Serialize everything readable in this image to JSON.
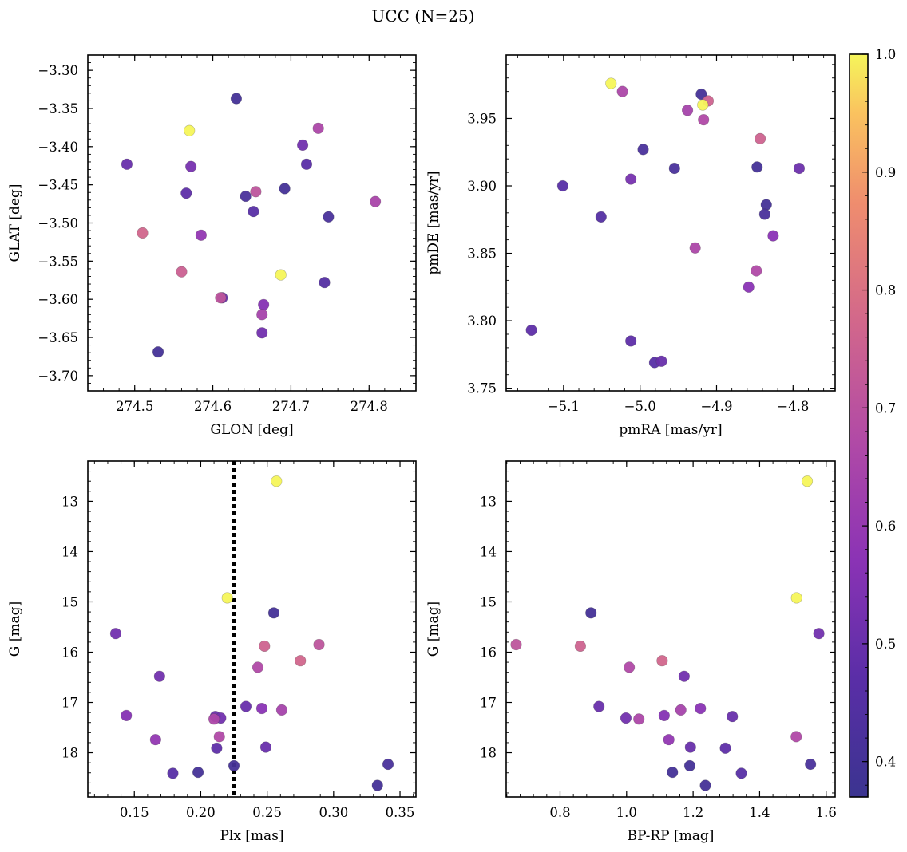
{
  "title": "UCC (N=25)",
  "colorbar": {
    "min": 0.37,
    "max": 1.0,
    "ticks": [
      0.4,
      0.5,
      0.6,
      0.7,
      0.8,
      0.9,
      1.0
    ],
    "tick_labels": [
      "0.4",
      "0.5",
      "0.6",
      "0.7",
      "0.8",
      "0.9",
      "1.0"
    ],
    "colormap": "plasma"
  },
  "chart_data": [
    {
      "type": "scatter",
      "xlabel": "GLON [deg]",
      "ylabel": "GLAT [deg]",
      "xlim": [
        274.44,
        274.86
      ],
      "ylim": [
        -3.72,
        -3.28
      ],
      "y_inverted": false,
      "xticks": [
        274.5,
        274.6,
        274.7,
        274.8
      ],
      "xtick_labels": [
        "274.5",
        "274.6",
        "274.7",
        "274.8"
      ],
      "yticks": [
        -3.7,
        -3.65,
        -3.6,
        -3.55,
        -3.5,
        -3.45,
        -3.4,
        -3.35,
        -3.3
      ],
      "ytick_labels": [
        "−3.70",
        "−3.65",
        "−3.60",
        "−3.55",
        "−3.50",
        "−3.45",
        "−3.40",
        "−3.35",
        "−3.30"
      ],
      "points": [
        {
          "x": 274.63,
          "y": -3.337,
          "c": 0.4
        },
        {
          "x": 274.57,
          "y": -3.379,
          "c": 1.0
        },
        {
          "x": 274.735,
          "y": -3.376,
          "c": 0.66
        },
        {
          "x": 274.715,
          "y": -3.398,
          "c": 0.52
        },
        {
          "x": 274.49,
          "y": -3.423,
          "c": 0.5
        },
        {
          "x": 274.72,
          "y": -3.423,
          "c": 0.47
        },
        {
          "x": 274.572,
          "y": -3.426,
          "c": 0.53
        },
        {
          "x": 274.692,
          "y": -3.455,
          "c": 0.4
        },
        {
          "x": 274.655,
          "y": -3.459,
          "c": 0.71
        },
        {
          "x": 274.566,
          "y": -3.461,
          "c": 0.48
        },
        {
          "x": 274.642,
          "y": -3.465,
          "c": 0.42
        },
        {
          "x": 274.808,
          "y": -3.472,
          "c": 0.65
        },
        {
          "x": 274.652,
          "y": -3.485,
          "c": 0.46
        },
        {
          "x": 274.748,
          "y": -3.492,
          "c": 0.42
        },
        {
          "x": 274.51,
          "y": -3.513,
          "c": 0.77
        },
        {
          "x": 274.585,
          "y": -3.516,
          "c": 0.59
        },
        {
          "x": 274.56,
          "y": -3.564,
          "c": 0.75
        },
        {
          "x": 274.687,
          "y": -3.568,
          "c": 1.0
        },
        {
          "x": 274.743,
          "y": -3.578,
          "c": 0.45
        },
        {
          "x": 274.61,
          "y": -3.598,
          "c": 0.71
        },
        {
          "x": 274.612,
          "y": -3.598,
          "c": 0.5
        },
        {
          "x": 274.665,
          "y": -3.607,
          "c": 0.56
        },
        {
          "x": 274.663,
          "y": -3.62,
          "c": 0.64
        },
        {
          "x": 274.663,
          "y": -3.644,
          "c": 0.52
        },
        {
          "x": 274.53,
          "y": -3.669,
          "c": 0.4
        }
      ]
    },
    {
      "type": "scatter",
      "xlabel": "pmRA [mas/yr]",
      "ylabel": "pmDE [mas/yr]",
      "xlim": [
        -5.175,
        -4.745
      ],
      "ylim": [
        3.748,
        3.997
      ],
      "y_inverted": false,
      "xticks": [
        -5.1,
        -5.0,
        -4.9,
        -4.8
      ],
      "xtick_labels": [
        "−5.1",
        "−5.0",
        "−4.9",
        "−4.8"
      ],
      "yticks": [
        3.75,
        3.8,
        3.85,
        3.9,
        3.95
      ],
      "ytick_labels": [
        "3.75",
        "3.80",
        "3.85",
        "3.90",
        "3.95"
      ],
      "points": [
        {
          "x": -5.038,
          "y": 3.976,
          "c": 1.0
        },
        {
          "x": -5.023,
          "y": 3.97,
          "c": 0.66
        },
        {
          "x": -4.92,
          "y": 3.968,
          "c": 0.4
        },
        {
          "x": -4.911,
          "y": 3.963,
          "c": 0.76
        },
        {
          "x": -4.918,
          "y": 3.96,
          "c": 1.0
        },
        {
          "x": -4.938,
          "y": 3.956,
          "c": 0.64
        },
        {
          "x": -4.917,
          "y": 3.949,
          "c": 0.67
        },
        {
          "x": -4.843,
          "y": 3.935,
          "c": 0.76
        },
        {
          "x": -4.996,
          "y": 3.927,
          "c": 0.42
        },
        {
          "x": -4.955,
          "y": 3.913,
          "c": 0.42
        },
        {
          "x": -4.847,
          "y": 3.914,
          "c": 0.4
        },
        {
          "x": -4.792,
          "y": 3.913,
          "c": 0.51
        },
        {
          "x": -5.012,
          "y": 3.905,
          "c": 0.53
        },
        {
          "x": -5.101,
          "y": 3.9,
          "c": 0.46
        },
        {
          "x": -4.835,
          "y": 3.886,
          "c": 0.4
        },
        {
          "x": -4.837,
          "y": 3.879,
          "c": 0.42
        },
        {
          "x": -5.051,
          "y": 3.877,
          "c": 0.45
        },
        {
          "x": -4.826,
          "y": 3.863,
          "c": 0.57
        },
        {
          "x": -4.928,
          "y": 3.854,
          "c": 0.66
        },
        {
          "x": -4.848,
          "y": 3.837,
          "c": 0.67
        },
        {
          "x": -4.858,
          "y": 3.825,
          "c": 0.57
        },
        {
          "x": -5.142,
          "y": 3.793,
          "c": 0.48
        },
        {
          "x": -5.012,
          "y": 3.785,
          "c": 0.48
        },
        {
          "x": -4.981,
          "y": 3.769,
          "c": 0.46
        },
        {
          "x": -4.972,
          "y": 3.77,
          "c": 0.5
        }
      ]
    },
    {
      "type": "scatter",
      "xlabel": "Plx [mas]",
      "ylabel": "G [mag]",
      "xlim": [
        0.115,
        0.362
      ],
      "ylim": [
        18.88,
        12.2
      ],
      "y_inverted": true,
      "vline": {
        "x": 0.225,
        "style": "dotted"
      },
      "xticks": [
        0.15,
        0.2,
        0.25,
        0.3,
        0.35
      ],
      "xtick_labels": [
        "0.15",
        "0.20",
        "0.25",
        "0.30",
        "0.35"
      ],
      "yticks": [
        13,
        14,
        15,
        16,
        17,
        18
      ],
      "ytick_labels": [
        "13",
        "14",
        "15",
        "16",
        "17",
        "18"
      ],
      "points": [
        {
          "x": 0.257,
          "y": 12.6,
          "c": 1.0
        },
        {
          "x": 0.22,
          "y": 14.92,
          "c": 1.0
        },
        {
          "x": 0.255,
          "y": 15.22,
          "c": 0.4
        },
        {
          "x": 0.136,
          "y": 15.63,
          "c": 0.52
        },
        {
          "x": 0.289,
          "y": 15.85,
          "c": 0.71
        },
        {
          "x": 0.248,
          "y": 15.88,
          "c": 0.76
        },
        {
          "x": 0.275,
          "y": 16.17,
          "c": 0.77
        },
        {
          "x": 0.243,
          "y": 16.3,
          "c": 0.67
        },
        {
          "x": 0.169,
          "y": 16.48,
          "c": 0.52
        },
        {
          "x": 0.234,
          "y": 17.08,
          "c": 0.5
        },
        {
          "x": 0.246,
          "y": 17.12,
          "c": 0.57
        },
        {
          "x": 0.261,
          "y": 17.15,
          "c": 0.64
        },
        {
          "x": 0.144,
          "y": 17.26,
          "c": 0.56
        },
        {
          "x": 0.211,
          "y": 17.28,
          "c": 0.5
        },
        {
          "x": 0.215,
          "y": 17.31,
          "c": 0.52
        },
        {
          "x": 0.21,
          "y": 17.33,
          "c": 0.66
        },
        {
          "x": 0.214,
          "y": 17.68,
          "c": 0.67
        },
        {
          "x": 0.166,
          "y": 17.74,
          "c": 0.59
        },
        {
          "x": 0.249,
          "y": 17.89,
          "c": 0.5
        },
        {
          "x": 0.212,
          "y": 17.91,
          "c": 0.48
        },
        {
          "x": 0.341,
          "y": 18.23,
          "c": 0.42
        },
        {
          "x": 0.225,
          "y": 18.26,
          "c": 0.4
        },
        {
          "x": 0.198,
          "y": 18.39,
          "c": 0.4
        },
        {
          "x": 0.179,
          "y": 18.41,
          "c": 0.46
        },
        {
          "x": 0.333,
          "y": 18.65,
          "c": 0.4
        }
      ]
    },
    {
      "type": "scatter",
      "xlabel": "BP-RP [mag]",
      "ylabel": "G [mag]",
      "xlim": [
        0.638,
        1.627
      ],
      "ylim": [
        18.88,
        12.2
      ],
      "y_inverted": true,
      "xticks": [
        0.8,
        1.0,
        1.2,
        1.4,
        1.6
      ],
      "xtick_labels": [
        "0.8",
        "1.0",
        "1.2",
        "1.4",
        "1.6"
      ],
      "yticks": [
        13,
        14,
        15,
        16,
        17,
        18
      ],
      "ytick_labels": [
        "13",
        "14",
        "15",
        "16",
        "17",
        "18"
      ],
      "points": [
        {
          "x": 1.543,
          "y": 12.6,
          "c": 1.0
        },
        {
          "x": 1.511,
          "y": 14.92,
          "c": 1.0
        },
        {
          "x": 0.893,
          "y": 15.22,
          "c": 0.4
        },
        {
          "x": 1.578,
          "y": 15.63,
          "c": 0.52
        },
        {
          "x": 0.668,
          "y": 15.85,
          "c": 0.71
        },
        {
          "x": 0.861,
          "y": 15.88,
          "c": 0.76
        },
        {
          "x": 1.107,
          "y": 16.17,
          "c": 0.77
        },
        {
          "x": 1.008,
          "y": 16.3,
          "c": 0.67
        },
        {
          "x": 1.173,
          "y": 16.48,
          "c": 0.52
        },
        {
          "x": 0.917,
          "y": 17.08,
          "c": 0.5
        },
        {
          "x": 1.222,
          "y": 17.12,
          "c": 0.57
        },
        {
          "x": 1.163,
          "y": 17.15,
          "c": 0.64
        },
        {
          "x": 1.113,
          "y": 17.26,
          "c": 0.56
        },
        {
          "x": 1.318,
          "y": 17.28,
          "c": 0.5
        },
        {
          "x": 0.998,
          "y": 17.31,
          "c": 0.52
        },
        {
          "x": 1.037,
          "y": 17.33,
          "c": 0.66
        },
        {
          "x": 1.51,
          "y": 17.68,
          "c": 0.67
        },
        {
          "x": 1.127,
          "y": 17.74,
          "c": 0.59
        },
        {
          "x": 1.192,
          "y": 17.89,
          "c": 0.5
        },
        {
          "x": 1.297,
          "y": 17.91,
          "c": 0.48
        },
        {
          "x": 1.553,
          "y": 18.23,
          "c": 0.42
        },
        {
          "x": 1.19,
          "y": 18.26,
          "c": 0.4
        },
        {
          "x": 1.138,
          "y": 18.39,
          "c": 0.4
        },
        {
          "x": 1.345,
          "y": 18.41,
          "c": 0.46
        },
        {
          "x": 1.237,
          "y": 18.65,
          "c": 0.4
        }
      ]
    }
  ]
}
